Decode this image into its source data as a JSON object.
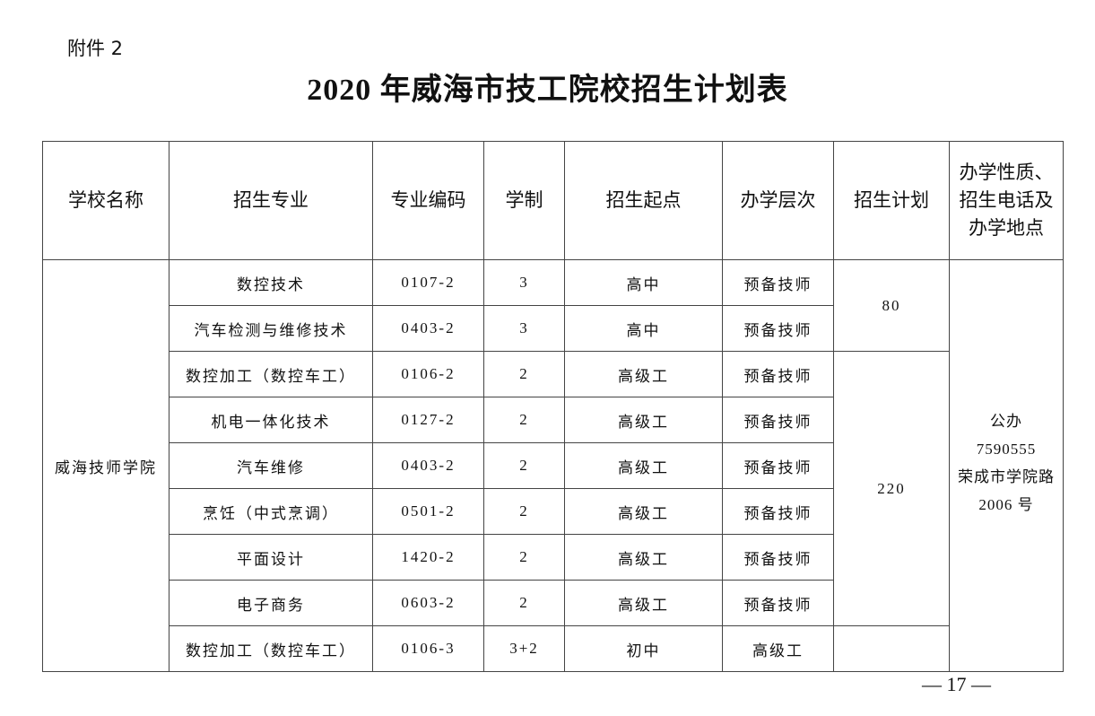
{
  "attachment_label": "附件 2",
  "title": "2020 年威海市技工院校招生计划表",
  "table": {
    "headers": [
      "学校名称",
      "招生专业",
      "专业编码",
      "学制",
      "招生起点",
      "办学层次",
      "招生计划",
      "办学性质、招生电话及办学地点"
    ],
    "school": "威海技师学院",
    "rows": [
      {
        "major": "数控技术",
        "code": "0107-2",
        "duration": "3",
        "start": "高中",
        "level": "预备技师"
      },
      {
        "major": "汽车检测与维修技术",
        "code": "0403-2",
        "duration": "3",
        "start": "高中",
        "level": "预备技师"
      },
      {
        "major": "数控加工（数控车工）",
        "code": "0106-2",
        "duration": "2",
        "start": "高级工",
        "level": "预备技师"
      },
      {
        "major": "机电一体化技术",
        "code": "0127-2",
        "duration": "2",
        "start": "高级工",
        "level": "预备技师"
      },
      {
        "major": "汽车维修",
        "code": "0403-2",
        "duration": "2",
        "start": "高级工",
        "level": "预备技师"
      },
      {
        "major": "烹饪（中式烹调）",
        "code": "0501-2",
        "duration": "2",
        "start": "高级工",
        "level": "预备技师"
      },
      {
        "major": "平面设计",
        "code": "1420-2",
        "duration": "2",
        "start": "高级工",
        "level": "预备技师"
      },
      {
        "major": "电子商务",
        "code": "0603-2",
        "duration": "2",
        "start": "高级工",
        "level": "预备技师"
      },
      {
        "major": "数控加工（数控车工）",
        "code": "0106-3",
        "duration": "3+2",
        "start": "初中",
        "level": "高级工"
      }
    ],
    "plans": [
      {
        "value": "80",
        "rowspan": 2
      },
      {
        "value": "220",
        "rowspan": 6
      },
      {
        "value": "",
        "rowspan": 1
      }
    ],
    "info": {
      "nature": "公办",
      "phone": "7590555",
      "address_line1": "荣成市学院路",
      "address_line2": "2006 号"
    }
  },
  "page_number": "— 17 —"
}
